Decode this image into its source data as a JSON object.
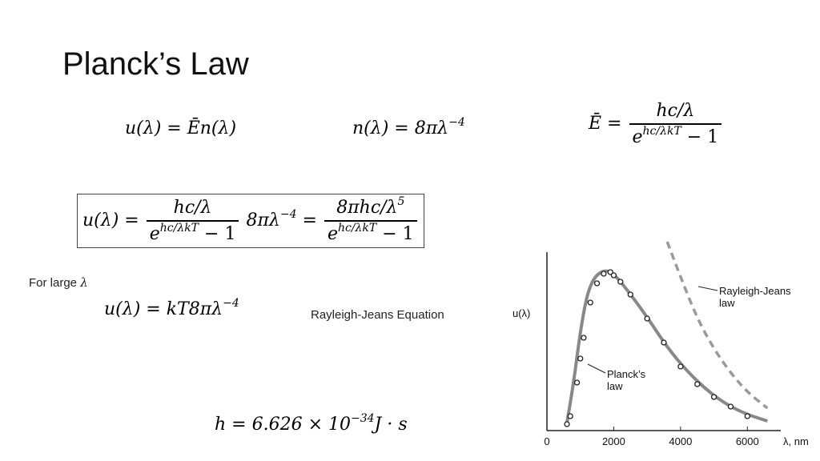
{
  "slide": {
    "title": "Planck’s Law",
    "note_large": "For large",
    "note_large_symbol": "λ",
    "rj_label": "Rayleigh-Jeans Equation"
  },
  "eq1": {
    "lhs": "u(λ) = Ē",
    "rhs": "n(λ)"
  },
  "eq2": {
    "lhs": "n(λ) = 8πλ",
    "exp": "−4"
  },
  "eq3": {
    "lhs": "Ē =",
    "num": "hc/λ",
    "den_base": "e",
    "den_exp": "hc/λkT",
    "den_rest": " − 1"
  },
  "eq4": {
    "lhs": "u(λ) =",
    "num1": "hc/λ",
    "den1_base": "e",
    "den1_exp": "hc/λkT",
    "den1_rest": " − 1",
    "mid": "8πλ",
    "mid_exp": "−4",
    "eq": "=",
    "num2": "8πhc/λ",
    "num2_exp": "5",
    "den2_base": "e",
    "den2_exp": "hc/λkT",
    "den2_rest": " − 1"
  },
  "eq5": {
    "lhs": "u(λ) = kT8πλ",
    "exp": "−4"
  },
  "eq6": {
    "lhs": "h = 6.626 × 10",
    "exp": "−34",
    "rhs": "J · s"
  },
  "colors": {
    "text": "#000000",
    "curve": "#888888",
    "dashed": "#9a9a9a"
  },
  "chart_data": {
    "type": "line",
    "ylabel": "u(λ)",
    "xlabel": "λ, nm",
    "xticks": [
      "0",
      "2000",
      "4000",
      "6000"
    ],
    "xlim": [
      0,
      7000
    ],
    "series": [
      {
        "name": "Planck’s law",
        "x": [
          600,
          800,
          1000,
          1200,
          1400,
          1600,
          1800,
          2000,
          2400,
          3000,
          3600,
          4200,
          4800,
          5400,
          6000,
          6600
        ],
        "y": [
          0.05,
          0.3,
          0.62,
          0.85,
          0.95,
          0.99,
          1.0,
          0.98,
          0.88,
          0.71,
          0.52,
          0.37,
          0.25,
          0.16,
          0.1,
          0.06
        ]
      },
      {
        "name": "Rayleigh-Jeans law",
        "x": [
          3600,
          4000,
          4500,
          5000,
          5500,
          6000,
          6600
        ],
        "y": [
          1.18,
          0.96,
          0.7,
          0.51,
          0.36,
          0.24,
          0.14
        ]
      }
    ],
    "points": {
      "x": [
        600,
        700,
        900,
        1000,
        1100,
        1300,
        1500,
        1700,
        1900,
        2000,
        2200,
        2500,
        3000,
        3500,
        4000,
        4500,
        5000,
        5500,
        6000
      ],
      "y": [
        0.04,
        0.09,
        0.3,
        0.45,
        0.58,
        0.8,
        0.92,
        0.98,
        0.99,
        0.97,
        0.93,
        0.85,
        0.7,
        0.55,
        0.4,
        0.29,
        0.21,
        0.15,
        0.09
      ]
    }
  }
}
